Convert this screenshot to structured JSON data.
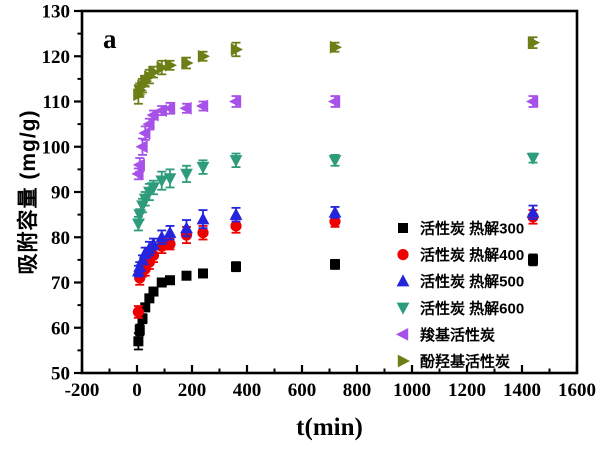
{
  "figure": {
    "panel_label": "a",
    "background": "#ffffff",
    "frame_color": "#000000"
  },
  "chart_data": {
    "type": "scatter",
    "title": "",
    "xlabel": "t(min)",
    "ylabel": "吸附容量 (mg/g)",
    "xlim": [
      -200,
      1600
    ],
    "ylim": [
      50,
      130
    ],
    "x_major_ticks": [
      -200,
      0,
      200,
      400,
      600,
      800,
      1000,
      1200,
      1400,
      1600
    ],
    "x_minor_step": 100,
    "y_major_ticks": [
      50,
      60,
      70,
      80,
      90,
      100,
      110,
      120,
      130
    ],
    "y_minor_step": 5,
    "grid": false,
    "legend_position": "inside lower right",
    "x": [
      5,
      10,
      20,
      30,
      45,
      60,
      90,
      120,
      180,
      240,
      360,
      720,
      1440
    ],
    "series": [
      {
        "name": "活性炭  热解300",
        "marker": "square",
        "color": "#000000",
        "y": [
          57.0,
          59.5,
          62.0,
          64.5,
          66.5,
          68.0,
          70.0,
          70.5,
          71.5,
          72.0,
          73.5,
          74.0,
          75.0
        ],
        "yerr": [
          1.8,
          1.2,
          1.0,
          0.8,
          0.8,
          0.8,
          0.8,
          0.8,
          0.8,
          0.8,
          1.0,
          1.0,
          1.2
        ]
      },
      {
        "name": "活性炭  热解400",
        "marker": "circle",
        "color": "#ee0000",
        "y": [
          63.5,
          71.0,
          72.5,
          73.0,
          74.5,
          76.0,
          78.0,
          78.5,
          80.5,
          81.0,
          82.5,
          83.5,
          84.5
        ],
        "yerr": [
          1.3,
          1.5,
          1.2,
          1.5,
          1.5,
          1.5,
          1.5,
          1.2,
          1.8,
          1.5,
          1.5,
          1.2,
          1.5
        ]
      },
      {
        "name": "活性炭  热解500",
        "marker": "triangle-up",
        "color": "#2424dd",
        "y": [
          72.5,
          73.5,
          75.0,
          76.5,
          77.5,
          78.5,
          80.0,
          81.0,
          82.0,
          84.0,
          85.0,
          85.5,
          85.5
        ],
        "yerr": [
          1.2,
          1.0,
          1.0,
          1.2,
          1.5,
          1.2,
          1.5,
          1.5,
          1.8,
          2.0,
          1.5,
          1.2,
          1.5
        ]
      },
      {
        "name": "活性炭  热解600",
        "marker": "triangle-down",
        "color": "#2e9c7a",
        "y": [
          83.0,
          85.0,
          87.0,
          88.5,
          90.0,
          91.0,
          92.5,
          93.0,
          94.0,
          95.5,
          97.0,
          97.0,
          97.5
        ],
        "yerr": [
          1.5,
          1.2,
          1.5,
          1.5,
          1.8,
          1.5,
          2.0,
          2.0,
          1.8,
          1.5,
          1.5,
          1.2,
          1.0
        ]
      },
      {
        "name": "羧基活性炭",
        "marker": "triangle-left",
        "color": "#a651e8",
        "y": [
          94.0,
          96.0,
          100.0,
          103.0,
          105.0,
          107.0,
          108.0,
          108.5,
          108.5,
          109.0,
          110.0,
          110.0,
          110.0
        ],
        "yerr": [
          1.2,
          1.5,
          1.8,
          1.5,
          1.2,
          1.0,
          1.0,
          1.2,
          1.0,
          1.0,
          1.2,
          1.2,
          1.2
        ]
      },
      {
        "name": "酚羟基活性炭",
        "marker": "triangle-right",
        "color": "#6b7f16",
        "y": [
          111.5,
          112.5,
          113.5,
          114.5,
          115.5,
          116.5,
          117.5,
          118.0,
          118.5,
          120.0,
          121.5,
          122.0,
          123.0
        ],
        "yerr": [
          2.0,
          1.5,
          1.5,
          1.2,
          1.5,
          1.2,
          1.5,
          1.0,
          1.2,
          1.0,
          1.5,
          1.0,
          1.2
        ]
      }
    ]
  }
}
